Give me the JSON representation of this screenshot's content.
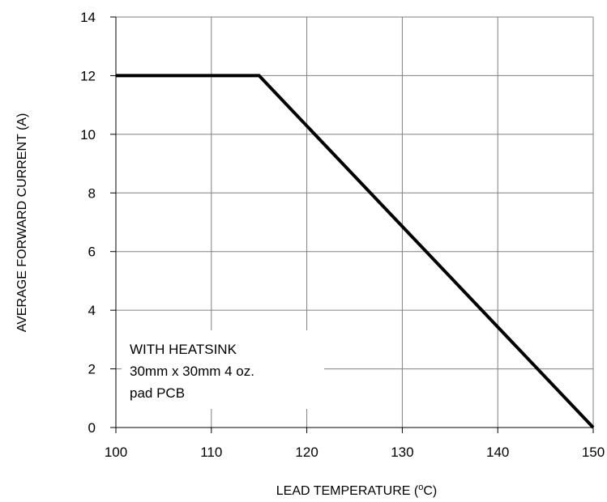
{
  "chart_data": {
    "type": "line",
    "title": "",
    "xlabel": "LEAD TEMPERATURE (",
    "xlabel_sup": "o",
    "xlabel_end": "C)",
    "ylabel": "AVERAGE FORWARD CURRENT (A)",
    "xlim": [
      100,
      150
    ],
    "ylim": [
      0,
      14
    ],
    "x_ticks": [
      100,
      110,
      120,
      130,
      140,
      150
    ],
    "y_ticks": [
      0,
      2,
      4,
      6,
      8,
      10,
      12,
      14
    ],
    "grid": true,
    "series": [
      {
        "x": [
          100,
          115,
          150
        ],
        "y": [
          12,
          12,
          0
        ],
        "color": "#000000"
      }
    ],
    "annotation": {
      "lines": [
        "WITH HEATSINK",
        "30mm x 30mm 4 oz.",
        "pad PCB"
      ]
    }
  }
}
